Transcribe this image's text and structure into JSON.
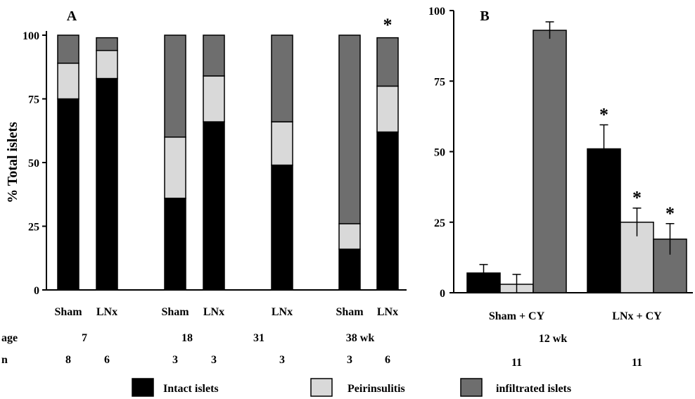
{
  "chart_data": [
    {
      "type": "bar",
      "stacked": true,
      "panel_label": "A",
      "ylabel": "% Total islets",
      "ylim": [
        0,
        100
      ],
      "yticks": [
        "0",
        "25",
        "50",
        "75",
        "100"
      ],
      "categories": [
        "Sham",
        "LNx",
        "Sham",
        "LNx",
        "LNx",
        "Sham",
        "LNx"
      ],
      "series": [
        {
          "name": "Intact islets",
          "color": "#000000",
          "values": [
            75,
            83,
            36,
            66,
            49,
            16,
            62
          ]
        },
        {
          "name": "Peirinsulitis",
          "color": "#d9d9d9",
          "values": [
            14,
            11,
            24,
            18,
            17,
            10,
            18
          ]
        },
        {
          "name": "infiltrated islets",
          "color": "#6e6e6e",
          "values": [
            11,
            5,
            40,
            16,
            34,
            74,
            19
          ]
        }
      ],
      "age_row": {
        "label": "age",
        "values": [
          "7",
          "18",
          "31",
          "38 wk"
        ]
      },
      "n_row": {
        "label": "n",
        "values": [
          "8",
          "6",
          "3",
          "3",
          "3",
          "3",
          "6"
        ]
      },
      "significance": [
        {
          "bar_index": 6,
          "mark": "*"
        }
      ]
    },
    {
      "type": "bar",
      "panel_label": "B",
      "ylim": [
        0,
        100
      ],
      "yticks": [
        "0",
        "25",
        "50",
        "75",
        "100"
      ],
      "categories": [
        "Sham + CY",
        "LNx + CY"
      ],
      "series": [
        {
          "name": "Intact islets",
          "color": "#000000",
          "values": [
            7,
            51
          ],
          "errors": [
            3,
            8.5
          ]
        },
        {
          "name": "Peirinsulitis",
          "color": "#d9d9d9",
          "values": [
            3,
            25
          ],
          "errors": [
            3.5,
            5
          ]
        },
        {
          "name": "infiltrated islets",
          "color": "#6e6e6e",
          "values": [
            93,
            19
          ],
          "errors": [
            3,
            5.5
          ]
        }
      ],
      "age_label": "12 wk",
      "n_row": {
        "values": [
          "11",
          "11"
        ]
      },
      "significance": [
        {
          "group": 1,
          "series": 0,
          "mark": "*"
        },
        {
          "group": 1,
          "series": 1,
          "mark": "*"
        },
        {
          "group": 1,
          "series": 2,
          "mark": "*"
        }
      ]
    }
  ],
  "legend": [
    {
      "label": "Intact islets",
      "color": "#000000"
    },
    {
      "label": "Peirinsulitis",
      "color": "#d9d9d9"
    },
    {
      "label": "infiltrated islets",
      "color": "#6e6e6e"
    }
  ]
}
